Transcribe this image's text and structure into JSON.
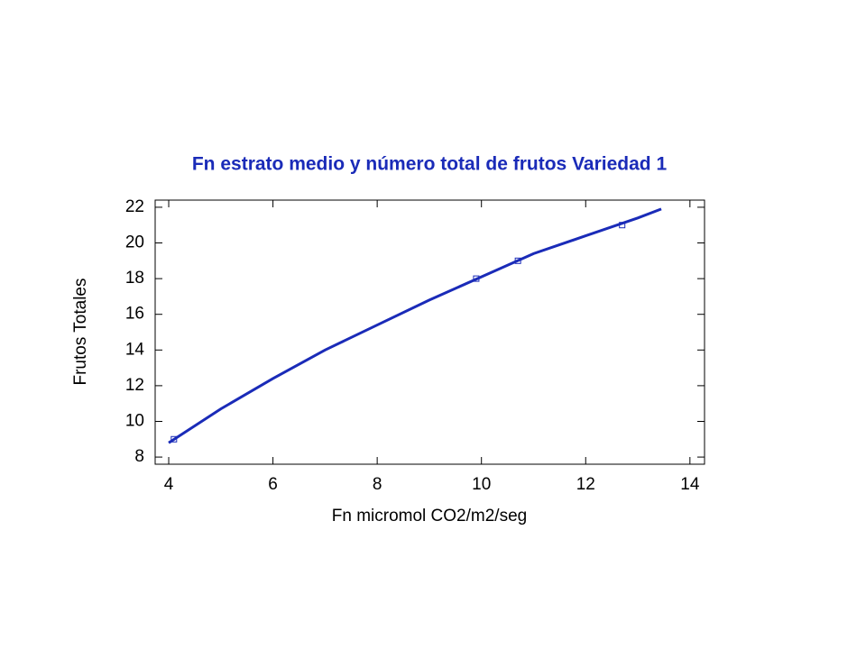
{
  "chart_data": {
    "type": "scatter",
    "title": "Fn estrato medio  y número total de frutos Variedad 1",
    "x_label": "Fn micromol CO2/m2/seg",
    "y_label": "Frutos Totales",
    "series": [
      {
        "style": "markers",
        "color": "#1a2bb8",
        "x": [
          4.1,
          9.9,
          10.7,
          12.7
        ],
        "values": [
          9,
          18,
          19,
          21
        ]
      },
      {
        "style": "line",
        "color": "#1a2bb8",
        "x": [
          4.0,
          5,
          6,
          7,
          8,
          9,
          10,
          11,
          12,
          13,
          13.45
        ],
        "values": [
          8.8,
          10.7,
          12.4,
          14.0,
          15.4,
          16.8,
          18.1,
          19.4,
          20.4,
          21.4,
          21.9
        ]
      }
    ],
    "xlim": [
      3.74,
      14.28
    ],
    "xticks": [
      4,
      6,
      8,
      10,
      12,
      14
    ],
    "ylim": [
      7.6,
      22.4
    ],
    "yticks": [
      8,
      10,
      12,
      14,
      16,
      18,
      20,
      22
    ]
  }
}
